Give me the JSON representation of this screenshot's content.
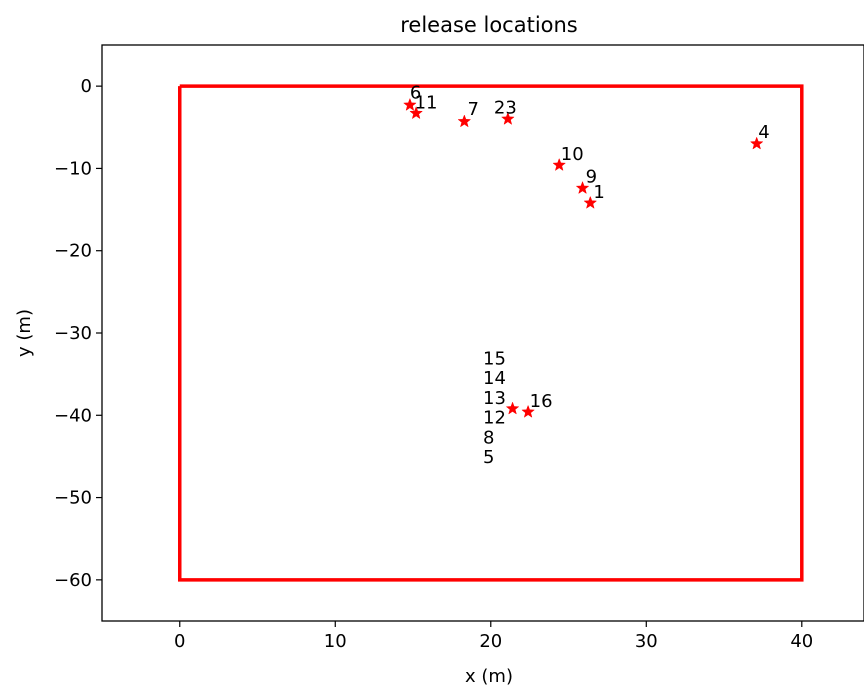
{
  "chart_data": {
    "type": "scatter",
    "title": "release locations",
    "xlabel": "x (m)",
    "ylabel": "y (m)",
    "xlim": [
      -5,
      44
    ],
    "ylim": [
      -65,
      5
    ],
    "xticks": [
      0,
      10,
      20,
      30,
      40
    ],
    "yticks": [
      0,
      -10,
      -20,
      -30,
      -40,
      -50,
      -60
    ],
    "xtick_labels": [
      "0",
      "10",
      "20",
      "30",
      "40"
    ],
    "ytick_labels": [
      "0",
      "−10",
      "−20",
      "−30",
      "−40",
      "−50",
      "−60"
    ],
    "grid": false,
    "marker_color": "#ff0000",
    "boundary": {
      "color": "#ff0000",
      "points": [
        [
          0,
          0
        ],
        [
          40,
          0
        ],
        [
          40,
          -60
        ],
        [
          0,
          -60
        ],
        [
          0,
          0
        ]
      ]
    },
    "markers": [
      {
        "x": 14.8,
        "y": -2.3
      },
      {
        "x": 15.2,
        "y": -3.3
      },
      {
        "x": 18.3,
        "y": -4.3
      },
      {
        "x": 21.1,
        "y": -4.0
      },
      {
        "x": 37.1,
        "y": -7.0
      },
      {
        "x": 24.4,
        "y": -9.6
      },
      {
        "x": 25.9,
        "y": -12.4
      },
      {
        "x": 26.4,
        "y": -14.2
      },
      {
        "x": 21.4,
        "y": -39.2
      },
      {
        "x": 22.4,
        "y": -39.6
      }
    ],
    "labels": [
      {
        "text": "6",
        "x": 14.8,
        "y": -1.5
      },
      {
        "text": "11",
        "x": 15.1,
        "y": -2.7
      },
      {
        "text": "7",
        "x": 18.5,
        "y": -3.5
      },
      {
        "text": "23",
        "x": 20.2,
        "y": -3.3
      },
      {
        "text": "4",
        "x": 37.2,
        "y": -6.3
      },
      {
        "text": "10",
        "x": 24.5,
        "y": -9.0
      },
      {
        "text": "9",
        "x": 26.1,
        "y": -11.7
      },
      {
        "text": "1",
        "x": 26.6,
        "y": -13.6
      },
      {
        "text": "15",
        "x": 19.5,
        "y": -33.8
      },
      {
        "text": "14",
        "x": 19.5,
        "y": -36.2
      },
      {
        "text": "13",
        "x": 19.5,
        "y": -38.6
      },
      {
        "text": "16",
        "x": 22.5,
        "y": -39.0
      },
      {
        "text": "12",
        "x": 19.5,
        "y": -41.0
      },
      {
        "text": "8",
        "x": 19.5,
        "y": -43.4
      },
      {
        "text": "5",
        "x": 19.5,
        "y": -45.8
      }
    ]
  }
}
